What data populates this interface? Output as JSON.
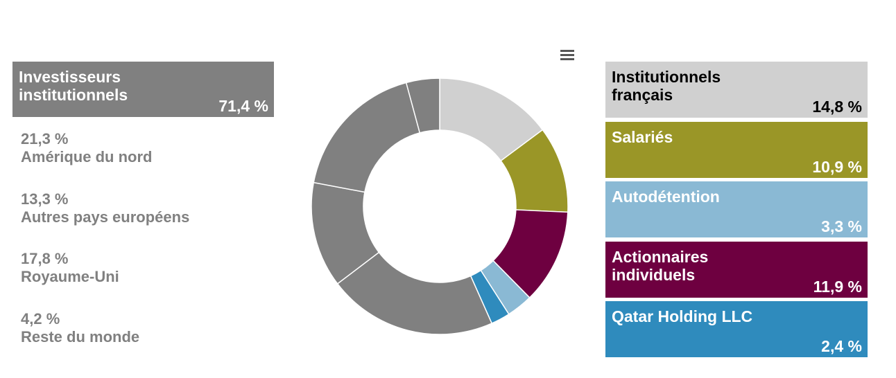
{
  "chart_data": {
    "type": "pie",
    "donut": true,
    "group": {
      "label": "Investisseurs institutionnels",
      "value": 71.4,
      "value_label": "71,4 %",
      "color": "#808080"
    },
    "categories": [
      "Institutionnels français",
      "Salariés",
      "Actionnaires individuels",
      "Autodétention",
      "Qatar Holding LLC",
      "Amérique du nord",
      "Autres pays européens",
      "Royaume-Uni",
      "Reste du monde"
    ],
    "values": [
      14.8,
      10.9,
      11.9,
      3.3,
      2.4,
      21.3,
      13.3,
      17.8,
      4.2
    ],
    "value_labels": [
      "14,8 %",
      "10,9 %",
      "11,9 %",
      "3,3 %",
      "2,4 %",
      "21,3 %",
      "13,3 %",
      "17,8 %",
      "4,2 %"
    ],
    "colors": [
      "#d0d0d0",
      "#9a9627",
      "#6e0040",
      "#8ab9d4",
      "#2f8bbd",
      "#808080",
      "#808080",
      "#808080",
      "#808080"
    ]
  }
}
